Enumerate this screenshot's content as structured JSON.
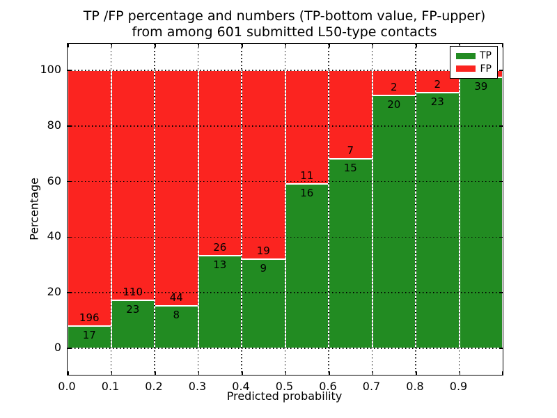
{
  "chart_data": {
    "type": "bar",
    "stacked": true,
    "title": "TP /FP percentage and numbers (TP-bottom value, FP-upper) from among 601 submitted L50-type contacts",
    "title_line1": "TP /FP percentage and numbers (TP-bottom value, FP-upper)",
    "title_line2": "from among 601 submitted L50-type contacts",
    "xlabel": "Predicted probability",
    "ylabel": "Percentage",
    "x_tick_labels": [
      "0.0",
      "0.1",
      "0.2",
      "0.3",
      "0.4",
      "0.5",
      "0.6",
      "0.7",
      "0.8",
      "0.9"
    ],
    "y_tick_labels": [
      "0",
      "20",
      "40",
      "60",
      "80",
      "100"
    ],
    "y_ticks": [
      0,
      20,
      40,
      60,
      80,
      100
    ],
    "xlim": [
      0.0,
      1.0
    ],
    "ylim": [
      -9.5,
      109.5
    ],
    "bin_width": 0.1,
    "grid": "dotted",
    "total_contacts": 601,
    "bins": [
      {
        "x_start": 0.0,
        "x_end": 0.1,
        "tp_count": 17,
        "fp_count": 196,
        "tp_pct": 7.98
      },
      {
        "x_start": 0.1,
        "x_end": 0.2,
        "tp_count": 23,
        "fp_count": 110,
        "tp_pct": 17.29
      },
      {
        "x_start": 0.2,
        "x_end": 0.3,
        "tp_count": 8,
        "fp_count": 44,
        "tp_pct": 15.38
      },
      {
        "x_start": 0.3,
        "x_end": 0.4,
        "tp_count": 13,
        "fp_count": 26,
        "tp_pct": 33.33
      },
      {
        "x_start": 0.4,
        "x_end": 0.5,
        "tp_count": 9,
        "fp_count": 19,
        "tp_pct": 32.14
      },
      {
        "x_start": 0.5,
        "x_end": 0.6,
        "tp_count": 16,
        "fp_count": 11,
        "tp_pct": 59.26
      },
      {
        "x_start": 0.6,
        "x_end": 0.7,
        "tp_count": 15,
        "fp_count": 7,
        "tp_pct": 68.18
      },
      {
        "x_start": 0.7,
        "x_end": 0.8,
        "tp_count": 20,
        "fp_count": 2,
        "tp_pct": 90.91
      },
      {
        "x_start": 0.8,
        "x_end": 0.9,
        "tp_count": 23,
        "fp_count": 2,
        "tp_pct": 92.0
      },
      {
        "x_start": 0.9,
        "x_end": 1.0,
        "tp_count": 39,
        "fp_count": null,
        "tp_pct": 97.5
      }
    ],
    "colors": {
      "tp": "#228B22",
      "fp": "#FB2420",
      "grid": "#000000",
      "bar_edge": "#FFFFFF"
    },
    "legend": {
      "position": "upper right",
      "entries": [
        {
          "label": "TP",
          "color": "#228B22"
        },
        {
          "label": "FP",
          "color": "#FB2420"
        }
      ]
    }
  }
}
